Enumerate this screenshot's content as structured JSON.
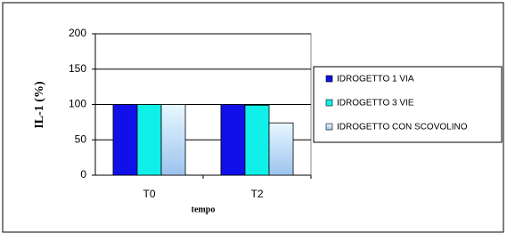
{
  "chart_data": {
    "type": "bar",
    "x_label": "tempo",
    "y_label": "IL-1 (%)",
    "categories": [
      "T0",
      "T2"
    ],
    "series": [
      {
        "name": "IDROGETTO 1 VIA",
        "color": "#1010e8",
        "values": [
          100,
          100
        ]
      },
      {
        "name": "IDROGETTO 3 VIE",
        "color": "#10f0e8",
        "values": [
          100,
          99
        ]
      },
      {
        "name": "IDROGETTO CON SCOVOLINO",
        "color": "#a6cdf2",
        "values": [
          100,
          74
        ]
      }
    ],
    "ylim": [
      0,
      200
    ],
    "yticks": [
      0,
      50,
      100,
      150,
      200
    ],
    "grid": true,
    "legend": "right"
  }
}
